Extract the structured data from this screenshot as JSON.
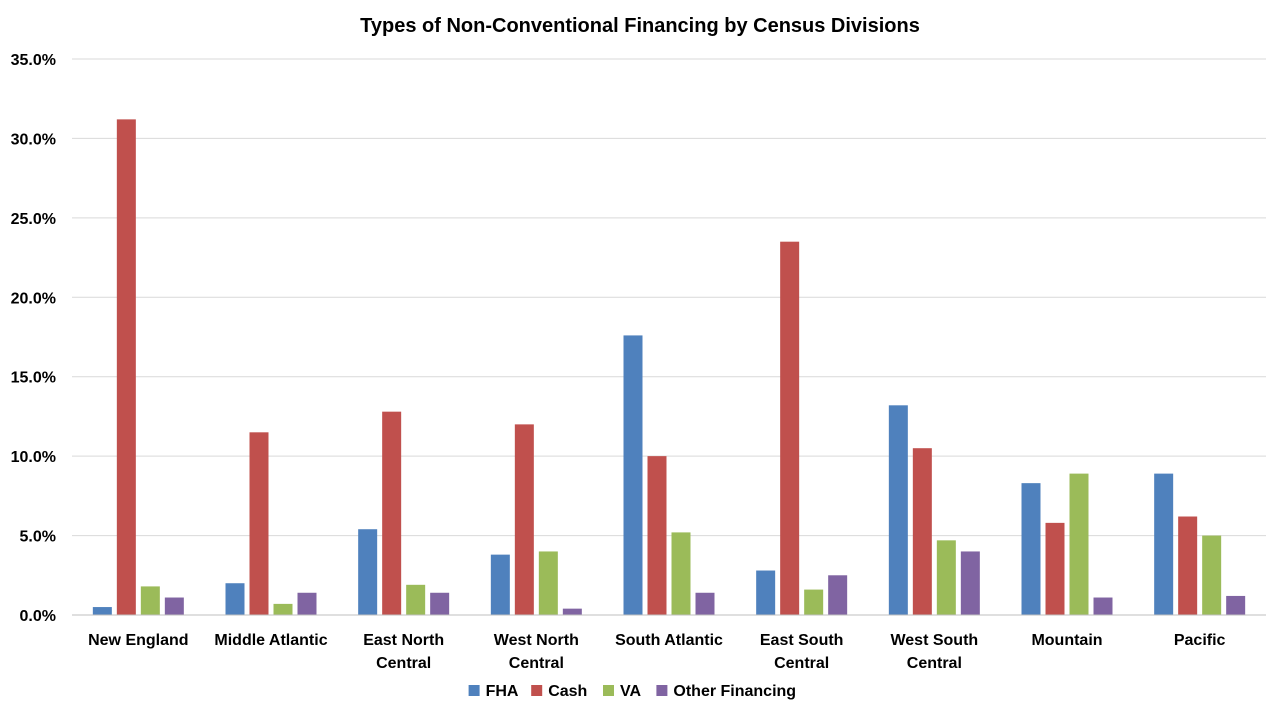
{
  "chart_data": {
    "type": "bar",
    "title": "Types of Non-Conventional Financing by Census Divisions",
    "xlabel": "",
    "ylabel": "",
    "ylim": [
      0,
      35
    ],
    "y_ticks": [
      "0.0%",
      "5.0%",
      "10.0%",
      "15.0%",
      "20.0%",
      "25.0%",
      "30.0%",
      "35.0%"
    ],
    "grid": true,
    "legend_position": "bottom",
    "categories": [
      [
        "New England"
      ],
      [
        "Middle Atlantic"
      ],
      [
        "East North",
        "Central"
      ],
      [
        "West North",
        "Central"
      ],
      [
        "South Atlantic"
      ],
      [
        "East South",
        "Central"
      ],
      [
        "West South",
        "Central"
      ],
      [
        "Mountain"
      ],
      [
        "Pacific"
      ]
    ],
    "series": [
      {
        "name": "FHA",
        "color": "#4F81BD",
        "values": [
          0.5,
          2.0,
          5.4,
          3.8,
          17.6,
          2.8,
          13.2,
          8.3,
          8.9
        ]
      },
      {
        "name": "Cash",
        "color": "#C0504D",
        "values": [
          31.2,
          11.5,
          12.8,
          12.0,
          10.0,
          23.5,
          10.5,
          5.8,
          6.2
        ]
      },
      {
        "name": "VA",
        "color": "#9BBB59",
        "values": [
          1.8,
          0.7,
          1.9,
          4.0,
          5.2,
          1.6,
          4.7,
          8.9,
          5.0
        ]
      },
      {
        "name": "Other Financing",
        "color": "#8064A2",
        "values": [
          1.1,
          1.4,
          1.4,
          0.4,
          1.4,
          2.5,
          4.0,
          1.1,
          1.2
        ]
      }
    ]
  }
}
